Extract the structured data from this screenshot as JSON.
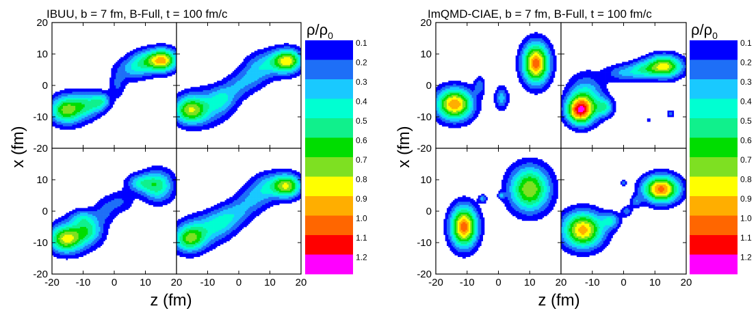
{
  "chart_data": [
    {
      "type": "heatmap",
      "title": "IBUU, b = 7 fm, B-Full, t = 100 fm/c",
      "xlabel": "z (fm)",
      "ylabel": "x (fm)",
      "xlim": [
        -20,
        20
      ],
      "ylim": [
        -20,
        20
      ],
      "x_ticks": [
        "-20",
        "-10",
        "0",
        "10",
        "20"
      ],
      "y_ticks": [
        "20",
        "10",
        "0",
        "-10",
        "-20"
      ],
      "grid": "2x2 panels",
      "colorbar": {
        "title": "ρ/ρ0",
        "levels": [
          "0.1",
          "0.2",
          "0.3",
          "0.4",
          "0.5",
          "0.6",
          "0.7",
          "0.8",
          "0.9",
          "1.0",
          "1.1",
          "1.2"
        ]
      },
      "panels": [
        {
          "blobs": [
            {
              "x": -16,
              "y": -8,
              "sx": 3.5,
              "sy": 3.0,
              "a": 0.55
            },
            {
              "x": -12,
              "y": -7,
              "sx": 4.5,
              "sy": 3.5,
              "a": 0.3
            },
            {
              "x": -8,
              "y": -6,
              "sx": 3.0,
              "sy": 2.5,
              "a": 0.3
            },
            {
              "x": -4,
              "y": -5,
              "sx": 2.0,
              "sy": 2.0,
              "a": 0.35
            },
            {
              "x": 1,
              "y": 0,
              "sx": 1.8,
              "sy": 3.0,
              "a": 0.2
            },
            {
              "x": 6,
              "y": 5,
              "sx": 4.0,
              "sy": 2.5,
              "a": 0.3
            },
            {
              "x": 11,
              "y": 8,
              "sx": 4.0,
              "sy": 2.5,
              "a": 0.45
            },
            {
              "x": 16,
              "y": 8,
              "sx": 3.0,
              "sy": 2.5,
              "a": 0.75
            }
          ]
        },
        {
          "blobs": [
            {
              "x": -16,
              "y": -8,
              "sx": 3.5,
              "sy": 3.0,
              "a": 0.6
            },
            {
              "x": -11,
              "y": -7,
              "sx": 5.0,
              "sy": 4.0,
              "a": 0.35
            },
            {
              "x": -5,
              "y": -4,
              "sx": 3.0,
              "sy": 3.0,
              "a": 0.3
            },
            {
              "x": 0,
              "y": 0,
              "sx": 3.0,
              "sy": 3.0,
              "a": 0.25
            },
            {
              "x": 5,
              "y": 3,
              "sx": 3.0,
              "sy": 3.0,
              "a": 0.25
            },
            {
              "x": 11,
              "y": 7,
              "sx": 5.0,
              "sy": 3.0,
              "a": 0.4
            },
            {
              "x": 16,
              "y": 8,
              "sx": 3.0,
              "sy": 2.5,
              "a": 0.65
            }
          ]
        },
        {
          "blobs": [
            {
              "x": -16,
              "y": -9,
              "sx": 3.5,
              "sy": 3.0,
              "a": 0.6
            },
            {
              "x": -12,
              "y": -8,
              "sx": 5.0,
              "sy": 3.5,
              "a": 0.35
            },
            {
              "x": -8,
              "y": -6,
              "sx": 3.0,
              "sy": 2.5,
              "a": 0.3
            },
            {
              "x": -10,
              "y": -2,
              "sx": 3.0,
              "sy": 2.0,
              "a": 0.3
            },
            {
              "x": -3,
              "y": 0,
              "sx": 2.5,
              "sy": 3.0,
              "a": 0.2
            },
            {
              "x": 2,
              "y": 3,
              "sx": 3.0,
              "sy": 2.5,
              "a": 0.2
            },
            {
              "x": 8,
              "y": 9,
              "sx": 3.0,
              "sy": 2.0,
              "a": 0.35
            },
            {
              "x": 14,
              "y": 8,
              "sx": 3.5,
              "sy": 3.5,
              "a": 0.55
            }
          ]
        },
        {
          "blobs": [
            {
              "x": -16,
              "y": -9,
              "sx": 3.5,
              "sy": 3.0,
              "a": 0.6
            },
            {
              "x": -11,
              "y": -6,
              "sx": 5.0,
              "sy": 3.5,
              "a": 0.35
            },
            {
              "x": -5,
              "y": -3,
              "sx": 3.5,
              "sy": 3.0,
              "a": 0.3
            },
            {
              "x": 0,
              "y": 0,
              "sx": 3.5,
              "sy": 3.0,
              "a": 0.25
            },
            {
              "x": 5,
              "y": 4,
              "sx": 3.5,
              "sy": 3.0,
              "a": 0.25
            },
            {
              "x": 11,
              "y": 8,
              "sx": 4.5,
              "sy": 3.0,
              "a": 0.4
            },
            {
              "x": 16,
              "y": 8,
              "sx": 3.0,
              "sy": 2.5,
              "a": 0.6
            }
          ]
        }
      ]
    },
    {
      "type": "heatmap",
      "title": "ImQMD-CIAE, b = 7 fm, B-Full, t = 100 fm/c",
      "xlabel": "z (fm)",
      "ylabel": "x (fm)",
      "xlim": [
        -20,
        20
      ],
      "ylim": [
        -20,
        20
      ],
      "x_ticks": [
        "-20",
        "-10",
        "0",
        "10",
        "20"
      ],
      "y_ticks": [
        "20",
        "10",
        "0",
        "-10",
        "-20"
      ],
      "grid": "2x2 panels",
      "colorbar": {
        "title": "ρ/ρ0",
        "levels": [
          "0.1",
          "0.2",
          "0.3",
          "0.4",
          "0.5",
          "0.6",
          "0.7",
          "0.8",
          "0.9",
          "1.0",
          "1.1",
          "1.2"
        ]
      },
      "panels": [
        {
          "blobs": [
            {
              "x": -14,
              "y": -6,
              "sx": 4.0,
              "sy": 3.5,
              "a": 1.0
            },
            {
              "x": -6,
              "y": 0,
              "sx": 1.2,
              "sy": 2.0,
              "a": 0.25
            },
            {
              "x": 1,
              "y": -4,
              "sx": 1.5,
              "sy": 2.5,
              "a": 0.35
            },
            {
              "x": 12,
              "y": 7,
              "sx": 3.0,
              "sy": 4.5,
              "a": 1.05
            }
          ]
        },
        {
          "blobs": [
            {
              "x": -14,
              "y": -8,
              "sx": 3.0,
              "sy": 3.0,
              "a": 0.95
            },
            {
              "x": -12,
              "y": -4,
              "sx": 4.0,
              "sy": 5.0,
              "a": 0.45
            },
            {
              "x": -6,
              "y": -7,
              "sx": 2.0,
              "sy": 2.0,
              "a": 0.4
            },
            {
              "x": 0,
              "y": 4,
              "sx": 4.0,
              "sy": 2.0,
              "a": 0.3
            },
            {
              "x": 6,
              "y": 5,
              "sx": 3.0,
              "sy": 2.0,
              "a": 0.3
            },
            {
              "x": 13,
              "y": 6,
              "sx": 4.0,
              "sy": 2.5,
              "a": 0.85
            },
            {
              "x": 15,
              "y": -9,
              "sx": 0.8,
              "sy": 0.8,
              "a": 0.3
            },
            {
              "x": 8,
              "y": -11,
              "sx": 0.5,
              "sy": 0.5,
              "a": 0.25
            }
          ]
        },
        {
          "blobs": [
            {
              "x": -11,
              "y": -5,
              "sx": 3.0,
              "sy": 4.5,
              "a": 1.05
            },
            {
              "x": -5,
              "y": 4,
              "sx": 0.9,
              "sy": 0.9,
              "a": 0.3
            },
            {
              "x": 1,
              "y": 5,
              "sx": 0.7,
              "sy": 0.7,
              "a": 0.25
            },
            {
              "x": 10,
              "y": 7,
              "sx": 4.5,
              "sy": 5.0,
              "a": 0.8
            }
          ]
        },
        {
          "blobs": [
            {
              "x": -13,
              "y": -6,
              "sx": 4.5,
              "sy": 4.0,
              "a": 0.95
            },
            {
              "x": -4,
              "y": -3,
              "sx": 2.0,
              "sy": 1.8,
              "a": 0.35
            },
            {
              "x": 1,
              "y": 0,
              "sx": 1.2,
              "sy": 1.2,
              "a": 0.25
            },
            {
              "x": 4,
              "y": 3,
              "sx": 1.2,
              "sy": 1.2,
              "a": 0.25
            },
            {
              "x": 12,
              "y": 7,
              "sx": 4.0,
              "sy": 3.0,
              "a": 1.05
            },
            {
              "x": 0,
              "y": 9,
              "sx": 0.6,
              "sy": 0.6,
              "a": 0.25
            }
          ]
        }
      ]
    }
  ],
  "colormap": [
    "#0000ff",
    "#1e6ff7",
    "#19c9ff",
    "#00ffd2",
    "#10f08c",
    "#00dd00",
    "#7ee022",
    "#ffff00",
    "#ffae00",
    "#ff6600",
    "#ff0000",
    "#ff00ff"
  ]
}
